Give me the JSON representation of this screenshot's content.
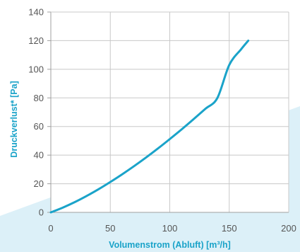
{
  "colors": {
    "background_band": "#dcf0f8",
    "plot_background": "#ffffff",
    "grid": "#c8c8c8",
    "axis": "#a0a0a0",
    "curve": "#1aa3c9",
    "label": "#1aa3c9",
    "tick_text": "#555555"
  },
  "chart_data": {
    "type": "line",
    "title": "",
    "xlabel": "Volumenstrom (Abluft) [m³/h]",
    "ylabel": "Druckverlust* [Pa]",
    "xlim": [
      0,
      200
    ],
    "ylim": [
      0,
      140
    ],
    "x_ticks": [
      "0",
      "50",
      "100",
      "150",
      "200"
    ],
    "y_ticks": [
      "0",
      "20",
      "40",
      "60",
      "80",
      "100",
      "120",
      "140"
    ],
    "grid": true,
    "legend": "none",
    "series": [
      {
        "x": [
          0,
          10,
          20,
          30,
          40,
          50,
          60,
          70,
          80,
          90,
          100,
          110,
          120,
          130,
          140,
          150,
          160,
          166
        ],
        "y": [
          0,
          3.3,
          7.1,
          11.4,
          16.1,
          21.2,
          26.6,
          32.3,
          38.3,
          44.6,
          51.2,
          58.0,
          65.1,
          72.4,
          79.9,
          103,
          114,
          120
        ]
      }
    ]
  }
}
